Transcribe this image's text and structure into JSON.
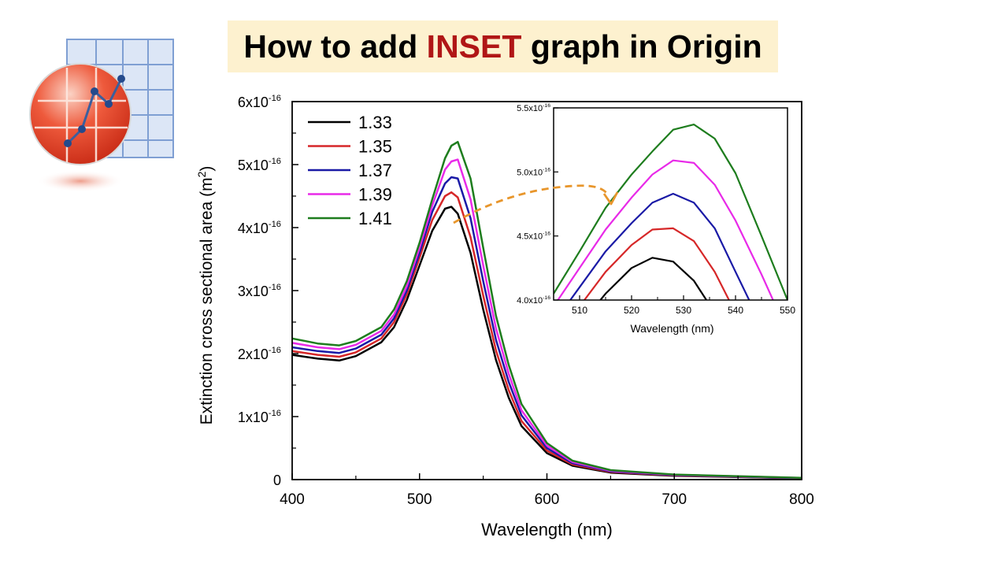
{
  "title": {
    "prefix": "How to add ",
    "highlight": "INSET",
    "suffix": " graph in Origin",
    "highlight_color": "#b01616",
    "background": "#fdf1cf"
  },
  "logo": {
    "icon": "origin-app-logo"
  },
  "colors": {
    "1.33": "#000000",
    "1.35": "#d62728",
    "1.37": "#1a1aa6",
    "1.39": "#e82ae8",
    "1.41": "#1e7d1e",
    "arrow": "#e8962c"
  },
  "chart_data": [
    {
      "type": "line",
      "xlabel": "Wavelength (nm)",
      "ylabel": "Extinction cross sectional area (m",
      "ylabel_sup": "2",
      "ylabel_end": ")",
      "xlim": [
        400,
        800
      ],
      "ylim": [
        0,
        6e-16
      ],
      "xticks": [
        "400",
        "500",
        "600",
        "700",
        "800"
      ],
      "yticks": [
        {
          "value": 0,
          "base": "0",
          "exp": ""
        },
        {
          "value": 1e-16,
          "base": "1x10",
          "exp": "-16"
        },
        {
          "value": 2e-16,
          "base": "2x10",
          "exp": "-16"
        },
        {
          "value": 3e-16,
          "base": "3x10",
          "exp": "-16"
        },
        {
          "value": 4e-16,
          "base": "4x10",
          "exp": "-16"
        },
        {
          "value": 5e-16,
          "base": "5x10",
          "exp": "-16"
        },
        {
          "value": 6e-16,
          "base": "6x10",
          "exp": "-16"
        }
      ],
      "legend": "top-left",
      "x": [
        400,
        420,
        437,
        450,
        470,
        480,
        490,
        500,
        510,
        520,
        525,
        530,
        540,
        550,
        560,
        570,
        580,
        600,
        620,
        650,
        700,
        800
      ],
      "series": [
        {
          "name": "1.33",
          "color": "#000000",
          "y_e16": [
            1.98,
            1.92,
            1.89,
            1.96,
            2.18,
            2.42,
            2.85,
            3.4,
            3.95,
            4.3,
            4.33,
            4.22,
            3.6,
            2.7,
            1.9,
            1.3,
            0.85,
            0.42,
            0.22,
            0.11,
            0.06,
            0.02
          ]
        },
        {
          "name": "1.35",
          "color": "#d62728",
          "y_e16": [
            2.04,
            1.98,
            1.95,
            2.02,
            2.24,
            2.5,
            2.94,
            3.52,
            4.12,
            4.5,
            4.56,
            4.48,
            3.85,
            2.92,
            2.05,
            1.42,
            0.93,
            0.46,
            0.24,
            0.12,
            0.065,
            0.022
          ]
        },
        {
          "name": "1.37",
          "color": "#1a1aa6",
          "y_e16": [
            2.1,
            2.04,
            2.01,
            2.08,
            2.3,
            2.56,
            3.0,
            3.6,
            4.25,
            4.7,
            4.8,
            4.78,
            4.15,
            3.15,
            2.22,
            1.55,
            1.02,
            0.5,
            0.26,
            0.13,
            0.07,
            0.024
          ]
        },
        {
          "name": "1.39",
          "color": "#e82ae8",
          "y_e16": [
            2.17,
            2.1,
            2.07,
            2.14,
            2.36,
            2.62,
            3.07,
            3.68,
            4.35,
            4.92,
            5.05,
            5.08,
            4.45,
            3.4,
            2.4,
            1.68,
            1.1,
            0.54,
            0.28,
            0.14,
            0.075,
            0.026
          ]
        },
        {
          "name": "1.41",
          "color": "#1e7d1e",
          "y_e16": [
            2.24,
            2.16,
            2.13,
            2.2,
            2.42,
            2.7,
            3.15,
            3.76,
            4.45,
            5.1,
            5.3,
            5.36,
            4.78,
            3.68,
            2.6,
            1.82,
            1.2,
            0.58,
            0.3,
            0.15,
            0.08,
            0.028
          ]
        }
      ]
    },
    {
      "type": "line",
      "role": "inset",
      "xlabel": "Wavelength (nm)",
      "xlim": [
        505,
        550
      ],
      "ylim": [
        4e-16,
        5.5e-16
      ],
      "xticks": [
        "510",
        "520",
        "530",
        "540",
        "550"
      ],
      "yticks": [
        {
          "value": 4e-16,
          "base": "4.0x10",
          "exp": "-16"
        },
        {
          "value": 4.5e-16,
          "base": "4.5x10",
          "exp": "-16"
        },
        {
          "value": 5e-16,
          "base": "5.0x10",
          "exp": "-16"
        },
        {
          "value": 5.5e-16,
          "base": "5.5x10",
          "exp": "-16"
        }
      ],
      "x": [
        505,
        510,
        515,
        520,
        524,
        528,
        532,
        536,
        540,
        545,
        550
      ],
      "series": [
        {
          "name": "1.33",
          "color": "#000000",
          "y_e16": [
            3.55,
            3.8,
            4.05,
            4.25,
            4.33,
            4.3,
            4.15,
            3.9,
            3.6,
            3.3,
            3.0
          ]
        },
        {
          "name": "1.35",
          "color": "#d62728",
          "y_e16": [
            3.7,
            3.95,
            4.22,
            4.43,
            4.55,
            4.56,
            4.46,
            4.22,
            3.9,
            3.55,
            3.2
          ]
        },
        {
          "name": "1.37",
          "color": "#1a1aa6",
          "y_e16": [
            3.82,
            4.1,
            4.38,
            4.6,
            4.76,
            4.83,
            4.76,
            4.56,
            4.22,
            3.8,
            3.4
          ]
        },
        {
          "name": "1.39",
          "color": "#e82ae8",
          "y_e16": [
            3.95,
            4.25,
            4.55,
            4.8,
            4.98,
            5.09,
            5.07,
            4.9,
            4.62,
            4.2,
            3.75
          ]
        },
        {
          "name": "1.41",
          "color": "#1e7d1e",
          "y_e16": [
            4.05,
            4.38,
            4.72,
            4.98,
            5.16,
            5.33,
            5.37,
            5.26,
            4.99,
            4.5,
            4.0
          ]
        }
      ]
    }
  ]
}
